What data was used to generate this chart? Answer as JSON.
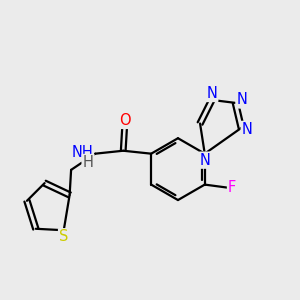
{
  "background_color": "#ebebeb",
  "atom_colors": {
    "N": "#0000ff",
    "O": "#ff0000",
    "S": "#cccc00",
    "F": "#ff00ff",
    "C": "#000000",
    "H": "#555555"
  },
  "bond_color": "#000000",
  "bond_width": 1.6,
  "font_size": 10.5,
  "figsize": [
    3.0,
    3.0
  ],
  "dpi": 100
}
